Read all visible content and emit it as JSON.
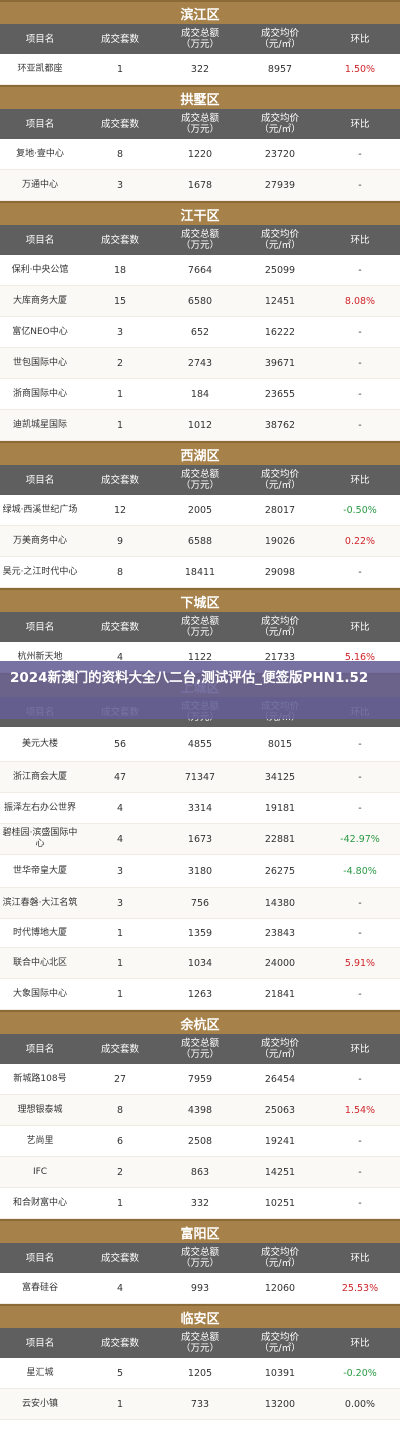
{
  "banner": {
    "title": "2024新澳门的资料大全八二台,测试评估_便签版PHN1.52"
  },
  "columns": [
    "项目名",
    "成交套数",
    "成交总额\n（万元）",
    "成交均价\n（元/㎡）",
    "环比"
  ],
  "colors": {
    "header_brown": "#a6814a",
    "col_header_gray": "#5f5f5f",
    "red": "#d0262b",
    "green": "#2a9a45",
    "banner": "#645e94"
  },
  "sections": [
    {
      "name": "滨江区",
      "rows": [
        [
          "环亚凯都座",
          "1",
          "322",
          "8957",
          "1.50%"
        ]
      ]
    },
    {
      "name": "拱墅区",
      "rows": [
        [
          "复地·壹中心",
          "8",
          "1220",
          "23720",
          "-"
        ],
        [
          "万通中心",
          "3",
          "1678",
          "27939",
          "-"
        ]
      ]
    },
    {
      "name": "江干区",
      "rows": [
        [
          "保利·中央公馆",
          "18",
          "7664",
          "25099",
          "-"
        ],
        [
          "大库商务大厦",
          "15",
          "6580",
          "12451",
          "8.08%"
        ],
        [
          "富亿NEO中心",
          "3",
          "652",
          "16222",
          "-"
        ],
        [
          "世包国际中心",
          "2",
          "2743",
          "39671",
          "-"
        ],
        [
          "浙商国际中心",
          "1",
          "184",
          "23655",
          "-"
        ],
        [
          "迪凯城星国际",
          "1",
          "1012",
          "38762",
          "-"
        ]
      ]
    },
    {
      "name": "西湖区",
      "rows": [
        [
          "绿城·西溪世纪广场",
          "12",
          "2005",
          "28017",
          "-0.50%"
        ],
        [
          "万美商务中心",
          "9",
          "6588",
          "19026",
          "0.22%"
        ],
        [
          "昊元·之江时代中心",
          "8",
          "18411",
          "29098",
          "-"
        ]
      ]
    },
    {
      "name": "下城区",
      "rows": [
        [
          "杭州新天地",
          "4",
          "1122",
          "21733",
          "5.16%"
        ]
      ]
    },
    {
      "name": "上城区",
      "rows": [
        [
          "美元大楼",
          "56",
          "4855",
          "8015",
          "-"
        ],
        [
          "浙江商会大厦",
          "47",
          "71347",
          "34125",
          "-"
        ],
        [
          "振泽左右办公世界",
          "4",
          "3314",
          "19181",
          "-"
        ],
        [
          "碧桂园·滨盛国际中心",
          "4",
          "1673",
          "22881",
          "-42.97%"
        ],
        [
          "世华帝皇大厦",
          "3",
          "3180",
          "26275",
          "-4.80%"
        ],
        [
          "滨江春磐·大江名筑",
          "3",
          "756",
          "14380",
          "-"
        ],
        [
          "时代博地大厦",
          "1",
          "1359",
          "23843",
          "-"
        ],
        [
          "联合中心北区",
          "1",
          "1034",
          "24000",
          "5.91%"
        ],
        [
          "大象国际中心",
          "1",
          "1263",
          "21841",
          "-"
        ]
      ]
    },
    {
      "name": "余杭区",
      "rows": [
        [
          "新城路108号",
          "27",
          "7959",
          "26454",
          "-"
        ],
        [
          "理想银泰城",
          "8",
          "4398",
          "25063",
          "1.54%"
        ],
        [
          "艺尚里",
          "6",
          "2508",
          "19241",
          "-"
        ],
        [
          "IFC",
          "2",
          "863",
          "14251",
          "-"
        ],
        [
          "和合财富中心",
          "1",
          "332",
          "10251",
          "-"
        ]
      ]
    },
    {
      "name": "富阳区",
      "rows": [
        [
          "富春硅谷",
          "4",
          "993",
          "12060",
          "25.53%"
        ]
      ]
    },
    {
      "name": "临安区",
      "rows": [
        [
          "星汇城",
          "5",
          "1205",
          "10391",
          "-0.20%"
        ],
        [
          "云安小镇",
          "1",
          "733",
          "13200",
          "0.00%"
        ]
      ]
    }
  ]
}
